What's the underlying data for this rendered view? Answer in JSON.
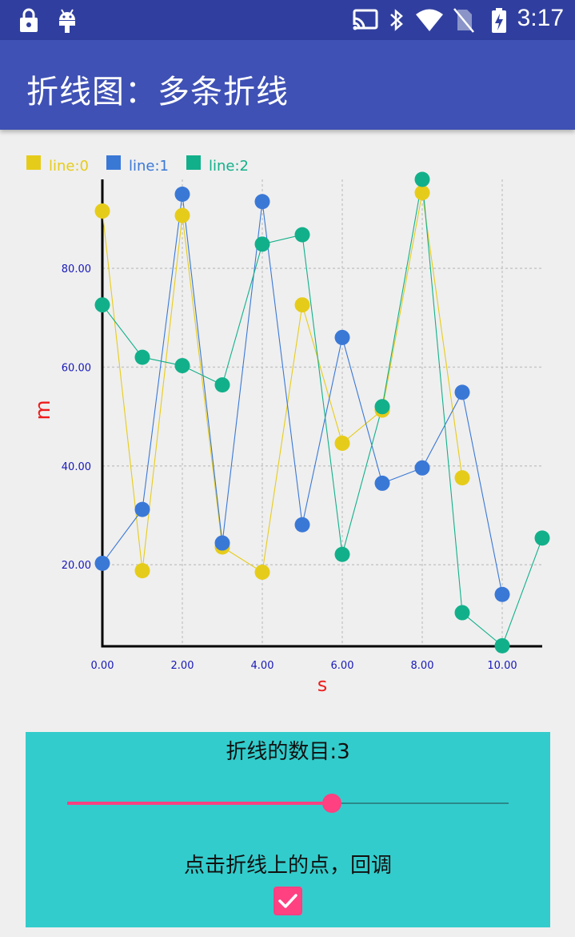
{
  "status_bar": {
    "time": "3:17",
    "icons": [
      "lock-icon",
      "android-icon",
      "cast-icon",
      "bluetooth-icon",
      "wifi-icon",
      "no-sim-icon",
      "battery-charging-icon"
    ]
  },
  "app_bar": {
    "title": "折线图：多条折线"
  },
  "chart_data": {
    "type": "line",
    "xlabel": "s",
    "ylabel": "m",
    "xlim": [
      0,
      11
    ],
    "ylim": [
      3.5,
      98
    ],
    "x_ticks": [
      "0.00",
      "2.00",
      "4.00",
      "6.00",
      "8.00",
      "10.00"
    ],
    "y_ticks": [
      "20.00",
      "40.00",
      "60.00",
      "80.00"
    ],
    "grid": true,
    "legend_position": "top-left",
    "series": [
      {
        "name": "line:0",
        "color": "#e6cc1a",
        "x": [
          0,
          1,
          2,
          3,
          4,
          5,
          6,
          7,
          8,
          9
        ],
        "y": [
          91.6,
          18.8,
          90.7,
          23.6,
          18.5,
          72.6,
          44.6,
          51.3,
          95.3,
          37.6
        ]
      },
      {
        "name": "line:1",
        "color": "#3a78d6",
        "x": [
          0,
          1,
          2,
          3,
          4,
          5,
          6,
          7,
          8,
          9,
          10
        ],
        "y": [
          20.3,
          31.2,
          95.0,
          24.4,
          93.5,
          28.1,
          66.0,
          36.5,
          39.6,
          54.9,
          14.0
        ]
      },
      {
        "name": "line:2",
        "color": "#12b08a",
        "x": [
          0,
          1,
          2,
          3,
          4,
          5,
          6,
          7,
          8,
          9,
          10,
          11
        ],
        "y": [
          72.6,
          62.0,
          60.3,
          56.4,
          84.9,
          86.8,
          22.1,
          52.0,
          98.0,
          10.3,
          3.6,
          25.4
        ]
      }
    ]
  },
  "controls": {
    "line_count_label": "折线的数目:3",
    "slider_value": 0.6,
    "callback_label": "点击折线上的点，回调",
    "callback_checked": true
  }
}
